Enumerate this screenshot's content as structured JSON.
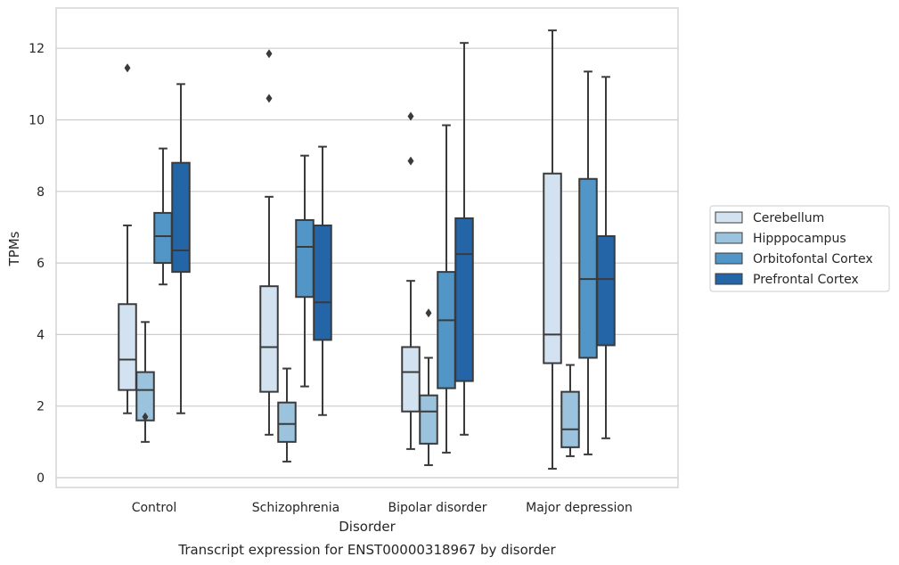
{
  "chart_data": {
    "type": "box",
    "title": "",
    "caption": "Transcript expression for ENST00000318967 by disorder",
    "xlabel": "Disorder",
    "ylabel": "TPMs",
    "ylim": [
      -0.3,
      13.1
    ],
    "yticks": [
      0,
      2,
      4,
      6,
      8,
      10,
      12
    ],
    "grid": "horizontal",
    "legend_position": "right",
    "categories": [
      "Control",
      "Schizophrenia",
      "Bipolar disorder",
      "Major depression"
    ],
    "series": [
      {
        "name": "Cerebellum",
        "color": "#d3e2f1",
        "boxes": [
          {
            "whislo": 1.8,
            "q1": 2.45,
            "med": 3.3,
            "q3": 4.85,
            "whishi": 7.05,
            "fliers": [
              11.45
            ]
          },
          {
            "whislo": 1.2,
            "q1": 2.4,
            "med": 3.65,
            "q3": 5.35,
            "whishi": 7.85,
            "fliers": [
              11.85,
              10.6
            ]
          },
          {
            "whislo": 0.8,
            "q1": 1.85,
            "med": 2.95,
            "q3": 3.65,
            "whishi": 5.5,
            "fliers": [
              10.1,
              8.85
            ]
          },
          {
            "whislo": 0.25,
            "q1": 3.2,
            "med": 4.0,
            "q3": 8.5,
            "whishi": 12.5,
            "fliers": []
          }
        ]
      },
      {
        "name": "Hipppocampus",
        "color": "#9bc3de",
        "boxes": [
          {
            "whislo": 1.0,
            "q1": 1.6,
            "med": 2.45,
            "q3": 2.95,
            "whishi": 4.35,
            "fliers": [
              1.7
            ]
          },
          {
            "whislo": 0.45,
            "q1": 1.0,
            "med": 1.5,
            "q3": 2.1,
            "whishi": 3.05,
            "fliers": []
          },
          {
            "whislo": 0.35,
            "q1": 0.95,
            "med": 1.85,
            "q3": 2.3,
            "whishi": 3.35,
            "fliers": [
              4.6
            ]
          },
          {
            "whislo": 0.6,
            "q1": 0.85,
            "med": 1.35,
            "q3": 2.4,
            "whishi": 3.15,
            "fliers": []
          }
        ]
      },
      {
        "name": "Orbitofontal Cortex",
        "color": "#5196c6",
        "boxes": [
          {
            "whislo": 5.4,
            "q1": 6.0,
            "med": 6.75,
            "q3": 7.4,
            "whishi": 9.2,
            "fliers": []
          },
          {
            "whislo": 2.55,
            "q1": 5.05,
            "med": 6.45,
            "q3": 7.2,
            "whishi": 9.0,
            "fliers": []
          },
          {
            "whislo": 0.7,
            "q1": 2.5,
            "med": 4.4,
            "q3": 5.75,
            "whishi": 9.85,
            "fliers": []
          },
          {
            "whislo": 0.65,
            "q1": 3.35,
            "med": 5.55,
            "q3": 8.35,
            "whishi": 11.35,
            "fliers": []
          }
        ]
      },
      {
        "name": "Prefrontal Cortex",
        "color": "#2465a7",
        "boxes": [
          {
            "whislo": 1.8,
            "q1": 5.75,
            "med": 6.35,
            "q3": 8.8,
            "whishi": 11.0,
            "fliers": []
          },
          {
            "whislo": 1.75,
            "q1": 3.85,
            "med": 4.9,
            "q3": 7.05,
            "whishi": 9.25,
            "fliers": []
          },
          {
            "whislo": 1.2,
            "q1": 2.7,
            "med": 6.25,
            "q3": 7.25,
            "whishi": 12.15,
            "fliers": []
          },
          {
            "whislo": 1.1,
            "q1": 3.7,
            "med": 5.55,
            "q3": 6.75,
            "whishi": 11.2,
            "fliers": []
          }
        ]
      }
    ]
  }
}
